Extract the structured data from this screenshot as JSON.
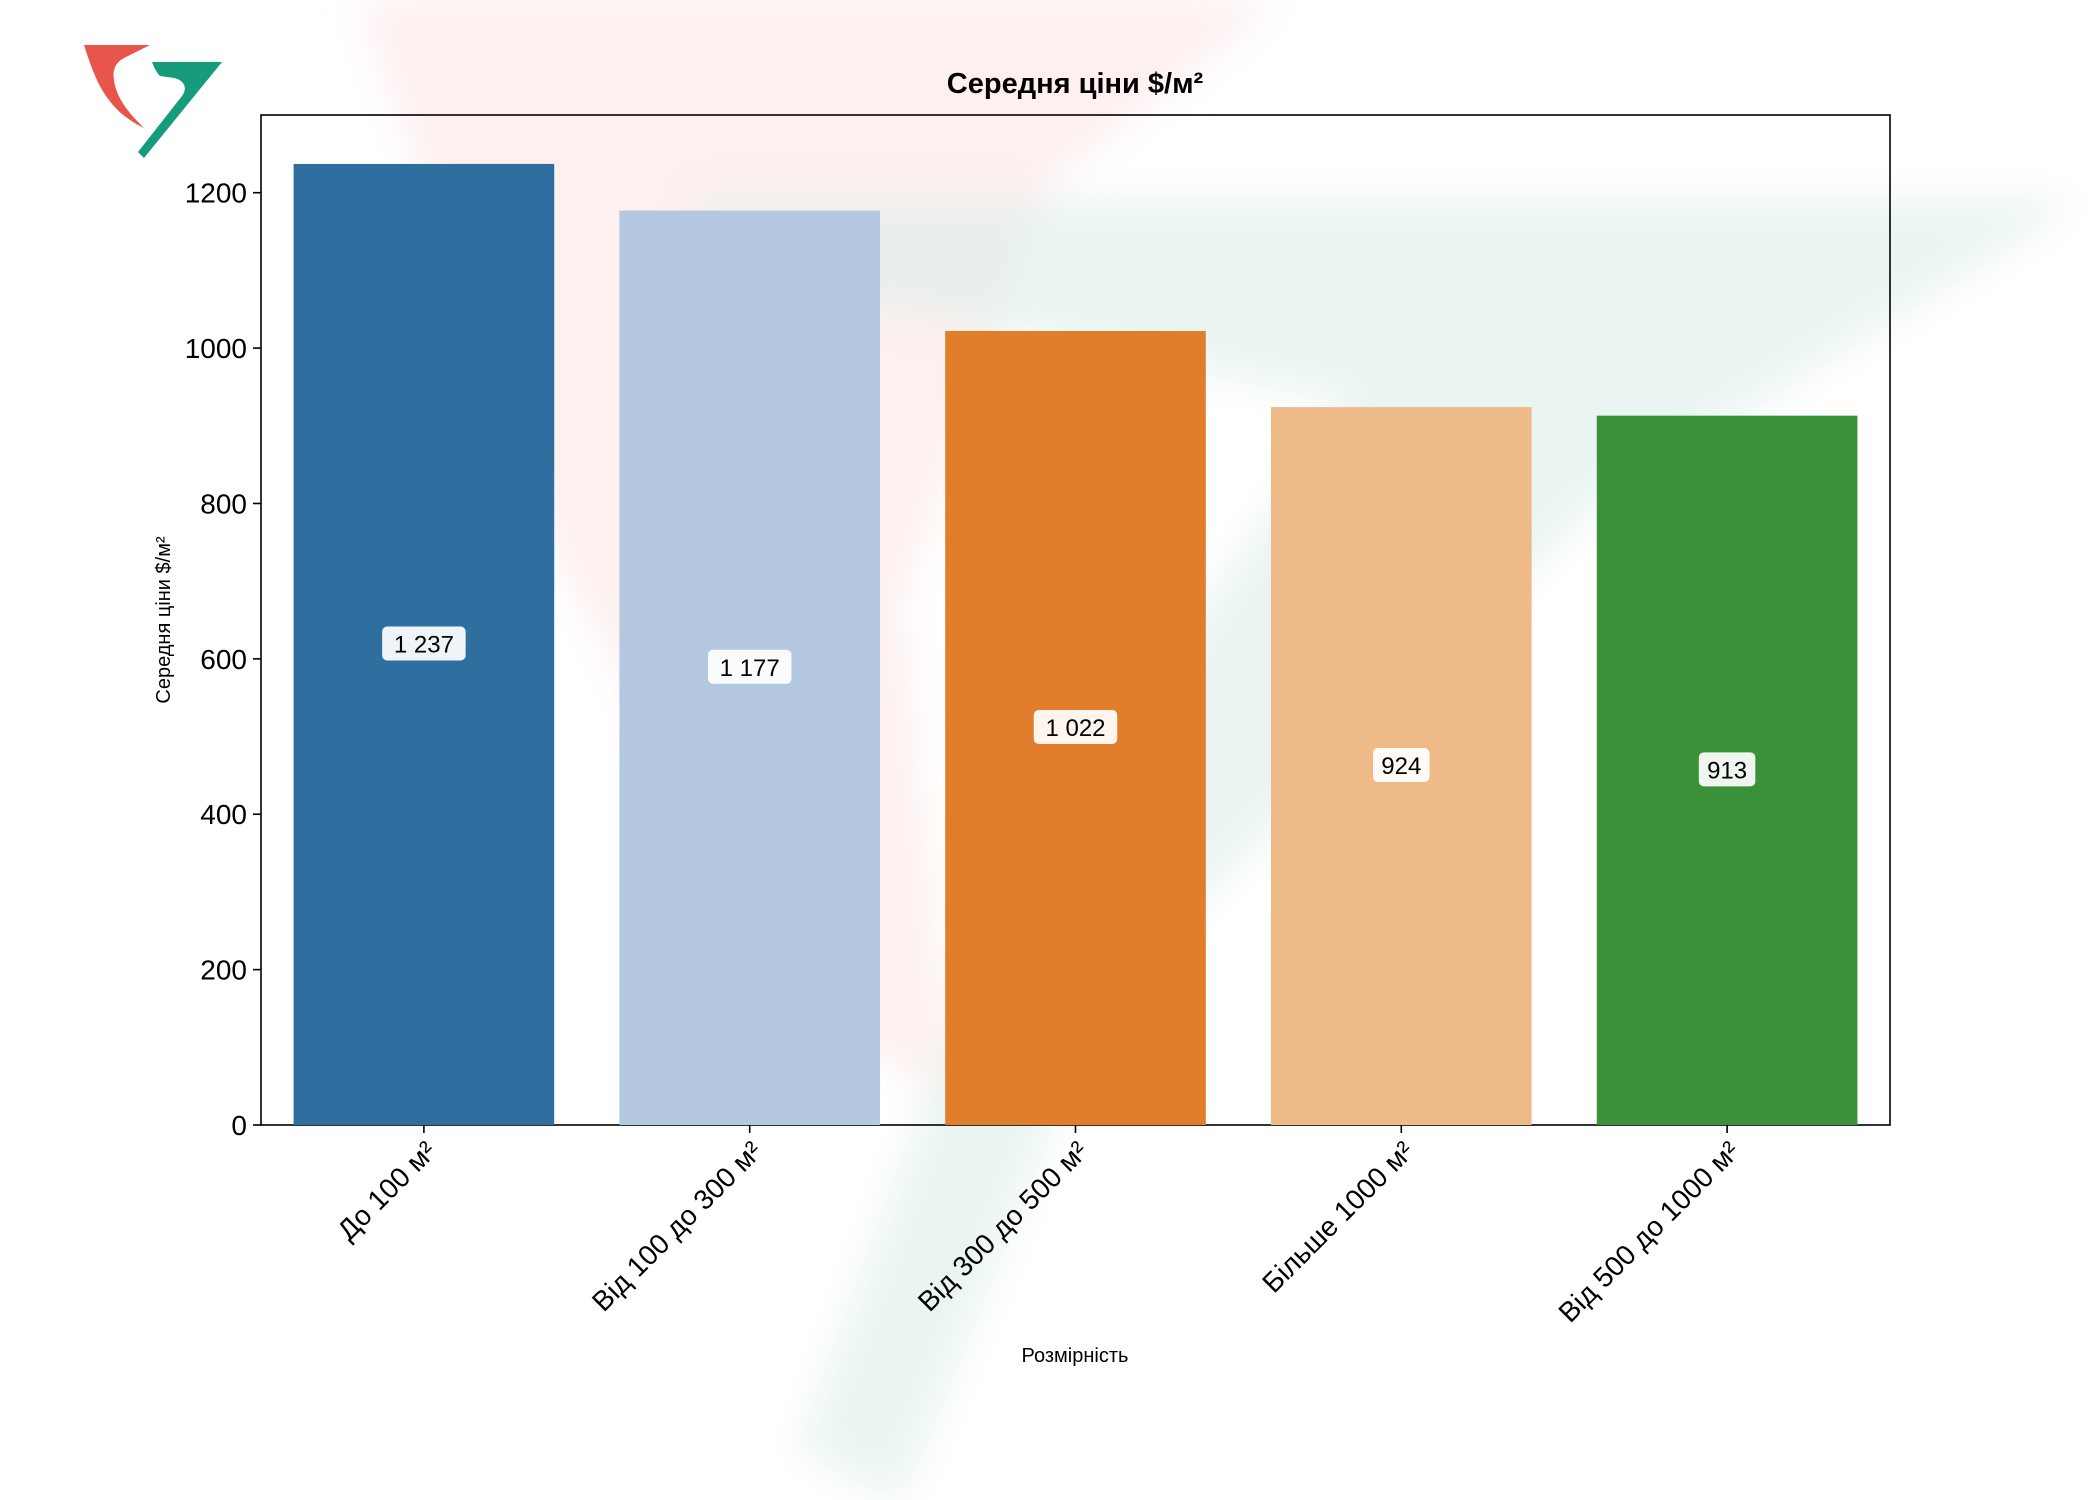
{
  "chart_data": {
    "type": "bar",
    "title": "Середня ціни $/м²",
    "xlabel": "Розмірність",
    "ylabel": "Середня ціни $/м²",
    "categories": [
      "До  100 м²",
      "Від 100 до 300 м²",
      "Від 300 до 500 м²",
      "Більше 1000 м²",
      "Від 500 до 1000 м²"
    ],
    "values": [
      1237,
      1177,
      1022,
      924,
      913
    ],
    "value_labels": [
      "1 237",
      "1 177",
      "1 022",
      "924",
      "913"
    ],
    "bar_colors": [
      "#2f6fa0",
      "#b5c8e2",
      "#e07e2c",
      "#edba88",
      "#3a9139"
    ],
    "yticks": [
      0,
      200,
      400,
      600,
      800,
      1000,
      1200
    ],
    "ylim": [
      0,
      1300
    ],
    "grid": false,
    "legend": "none"
  },
  "watermark": {
    "logo_icon": "company-logo-icon",
    "colors": {
      "red": "#e8554a",
      "teal": "#169b7c"
    }
  }
}
